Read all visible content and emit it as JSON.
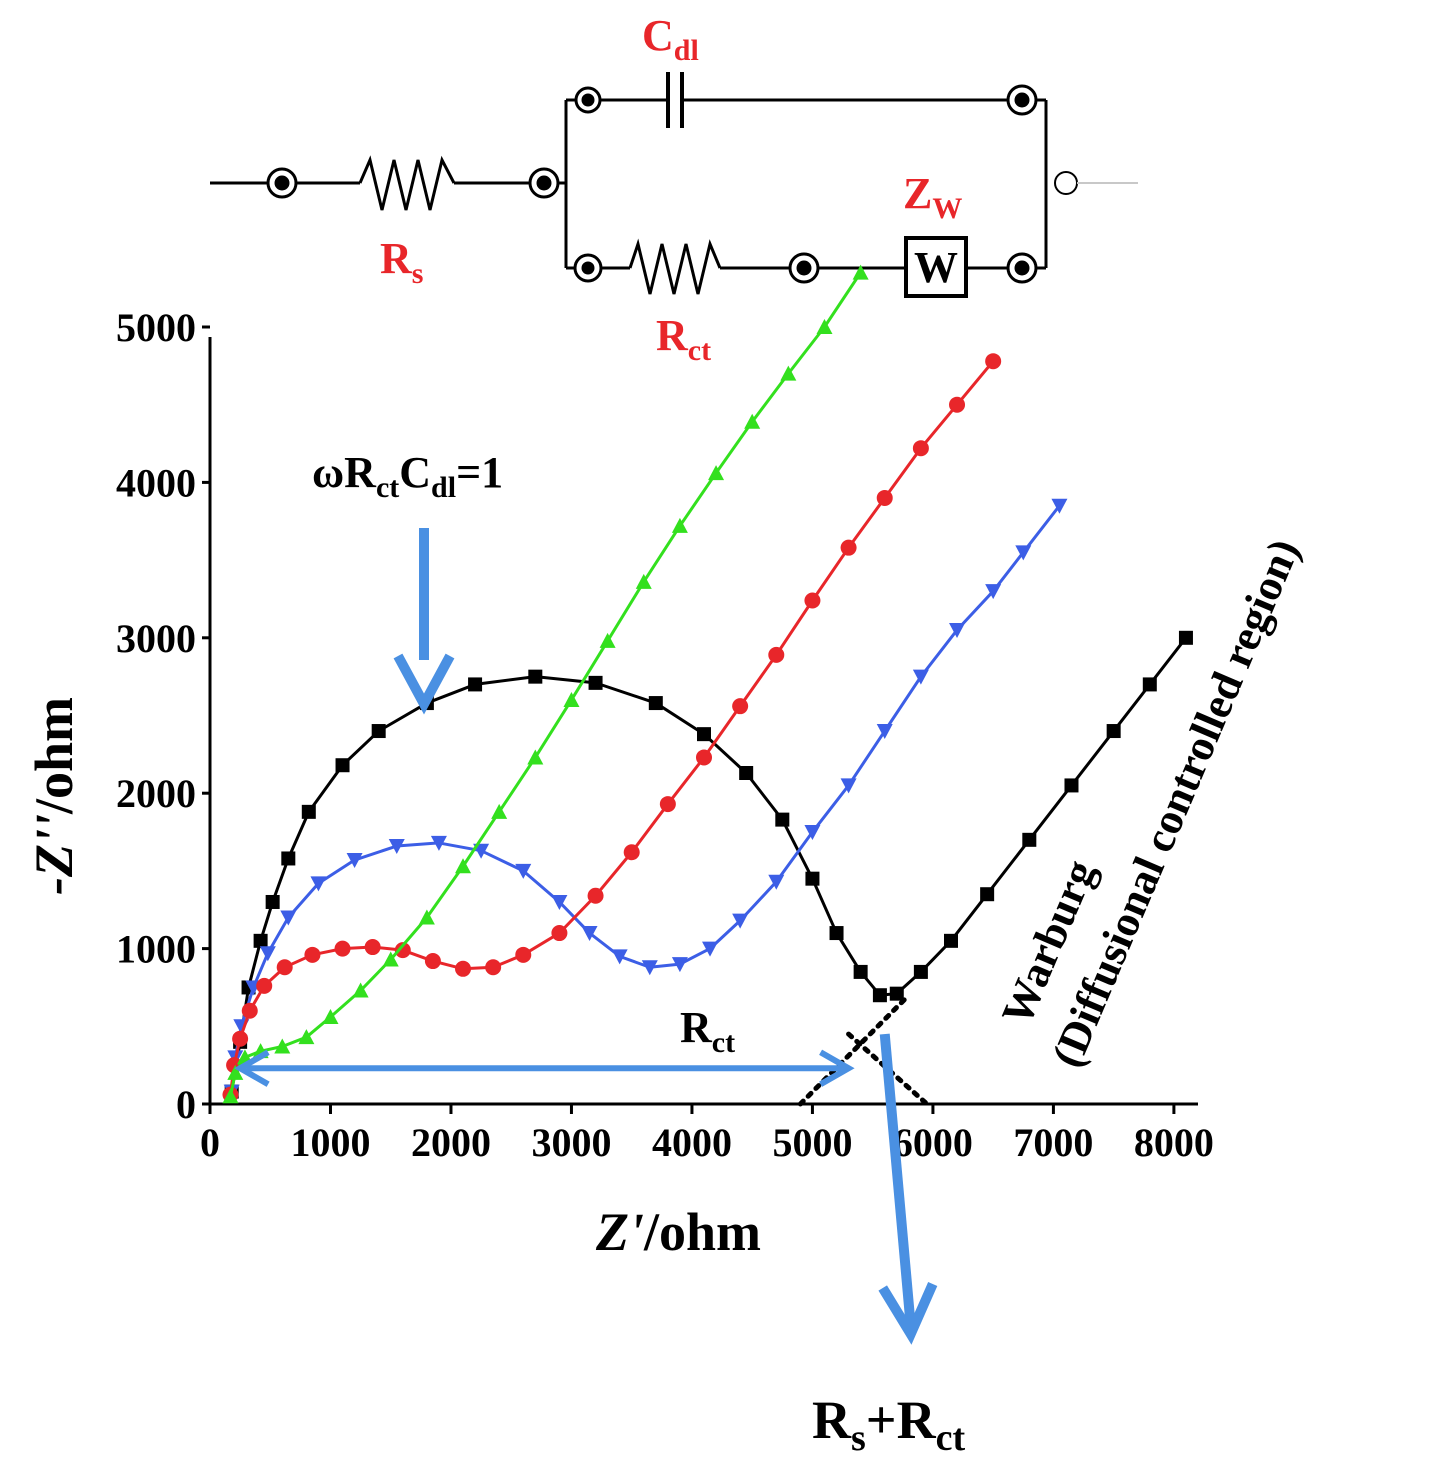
{
  "colors": {
    "red": "#e8262a",
    "green": "#33e01e",
    "blue": "#3c5ee6",
    "black": "#000000",
    "arrow": "#4a90e2"
  },
  "circuit": {
    "rs_label": "R",
    "rs_sub": "s",
    "cdl_label": "C",
    "cdl_sub": "dl",
    "rct_label": "R",
    "rct_sub": "ct",
    "zw_label": "Z",
    "zw_sub": "W",
    "warburg_box": "W"
  },
  "annotations": {
    "omega_main": "ωR",
    "omega_sub1": "ct",
    "omega_mid": "C",
    "omega_sub2": "dl",
    "omega_end": "=1",
    "rct_main": "R",
    "rct_sub": "ct",
    "sum_r1": "R",
    "sum_s": "s",
    "sum_plus": "+R",
    "sum_ct": "ct",
    "warburg_line1": "Warburg",
    "warburg_line2": "(Diffusional controlled region)"
  },
  "chart_data": {
    "type": "scatter",
    "xlabel_italic": "Z'",
    "xlabel_rest": "/ohm",
    "ylabel_italic": "-Z''",
    "ylabel_rest": "/ohm",
    "xlim": [
      0,
      8200
    ],
    "ylim": [
      0,
      5000
    ],
    "xticks": [
      "0",
      "1000",
      "2000",
      "3000",
      "4000",
      "5000",
      "6000",
      "7000",
      "8000"
    ],
    "yticks": [
      "0",
      "1000",
      "2000",
      "3000",
      "4000",
      "5000"
    ],
    "series": [
      {
        "name": "black",
        "marker": "square",
        "points": [
          [
            180,
            80
          ],
          [
            250,
            400
          ],
          [
            320,
            750
          ],
          [
            420,
            1050
          ],
          [
            520,
            1300
          ],
          [
            650,
            1580
          ],
          [
            820,
            1880
          ],
          [
            1100,
            2180
          ],
          [
            1400,
            2400
          ],
          [
            1800,
            2580
          ],
          [
            2200,
            2700
          ],
          [
            2700,
            2750
          ],
          [
            3200,
            2710
          ],
          [
            3700,
            2580
          ],
          [
            4100,
            2380
          ],
          [
            4450,
            2130
          ],
          [
            4750,
            1830
          ],
          [
            5000,
            1450
          ],
          [
            5200,
            1100
          ],
          [
            5400,
            850
          ],
          [
            5560,
            700
          ],
          [
            5700,
            710
          ],
          [
            5900,
            850
          ],
          [
            6150,
            1050
          ],
          [
            6450,
            1350
          ],
          [
            6800,
            1700
          ],
          [
            7150,
            2050
          ],
          [
            7500,
            2400
          ],
          [
            7800,
            2700
          ],
          [
            8100,
            3000
          ]
        ]
      },
      {
        "name": "blue",
        "marker": "triangle-down",
        "points": [
          [
            180,
            80
          ],
          [
            210,
            300
          ],
          [
            260,
            500
          ],
          [
            360,
            750
          ],
          [
            480,
            970
          ],
          [
            650,
            1200
          ],
          [
            900,
            1420
          ],
          [
            1200,
            1570
          ],
          [
            1550,
            1660
          ],
          [
            1900,
            1680
          ],
          [
            2250,
            1630
          ],
          [
            2600,
            1500
          ],
          [
            2900,
            1300
          ],
          [
            3150,
            1100
          ],
          [
            3400,
            950
          ],
          [
            3650,
            880
          ],
          [
            3900,
            900
          ],
          [
            4150,
            1000
          ],
          [
            4400,
            1180
          ],
          [
            4700,
            1430
          ],
          [
            5000,
            1750
          ],
          [
            5300,
            2050
          ],
          [
            5600,
            2400
          ],
          [
            5900,
            2750
          ],
          [
            6200,
            3050
          ],
          [
            6500,
            3300
          ],
          [
            6750,
            3550
          ],
          [
            7050,
            3850
          ]
        ]
      },
      {
        "name": "red",
        "marker": "circle",
        "points": [
          [
            170,
            60
          ],
          [
            200,
            250
          ],
          [
            250,
            420
          ],
          [
            330,
            600
          ],
          [
            450,
            760
          ],
          [
            620,
            880
          ],
          [
            850,
            960
          ],
          [
            1100,
            1000
          ],
          [
            1350,
            1010
          ],
          [
            1600,
            990
          ],
          [
            1850,
            920
          ],
          [
            2100,
            870
          ],
          [
            2350,
            880
          ],
          [
            2600,
            960
          ],
          [
            2900,
            1100
          ],
          [
            3200,
            1340
          ],
          [
            3500,
            1620
          ],
          [
            3800,
            1930
          ],
          [
            4100,
            2230
          ],
          [
            4400,
            2560
          ],
          [
            4700,
            2890
          ],
          [
            5000,
            3240
          ],
          [
            5300,
            3580
          ],
          [
            5600,
            3900
          ],
          [
            5900,
            4220
          ],
          [
            6200,
            4500
          ],
          [
            6500,
            4780
          ]
        ]
      },
      {
        "name": "green",
        "marker": "triangle-up",
        "points": [
          [
            170,
            50
          ],
          [
            210,
            200
          ],
          [
            290,
            300
          ],
          [
            420,
            340
          ],
          [
            600,
            370
          ],
          [
            800,
            430
          ],
          [
            1000,
            560
          ],
          [
            1250,
            730
          ],
          [
            1500,
            930
          ],
          [
            1800,
            1200
          ],
          [
            2100,
            1530
          ],
          [
            2400,
            1880
          ],
          [
            2700,
            2230
          ],
          [
            3000,
            2600
          ],
          [
            3300,
            2980
          ],
          [
            3600,
            3360
          ],
          [
            3900,
            3720
          ],
          [
            4200,
            4060
          ],
          [
            4500,
            4390
          ],
          [
            4800,
            4700
          ],
          [
            5100,
            5000
          ],
          [
            5400,
            5350
          ]
        ]
      }
    ],
    "tangent_lines": [
      {
        "from": [
          4900,
          0
        ],
        "to": [
          5800,
          700
        ]
      },
      {
        "from": [
          5300,
          450
        ],
        "to": [
          5950,
          0
        ]
      }
    ],
    "rct_span": [
      250,
      5300
    ],
    "rct_level": 230,
    "intercept_x": 5600
  }
}
